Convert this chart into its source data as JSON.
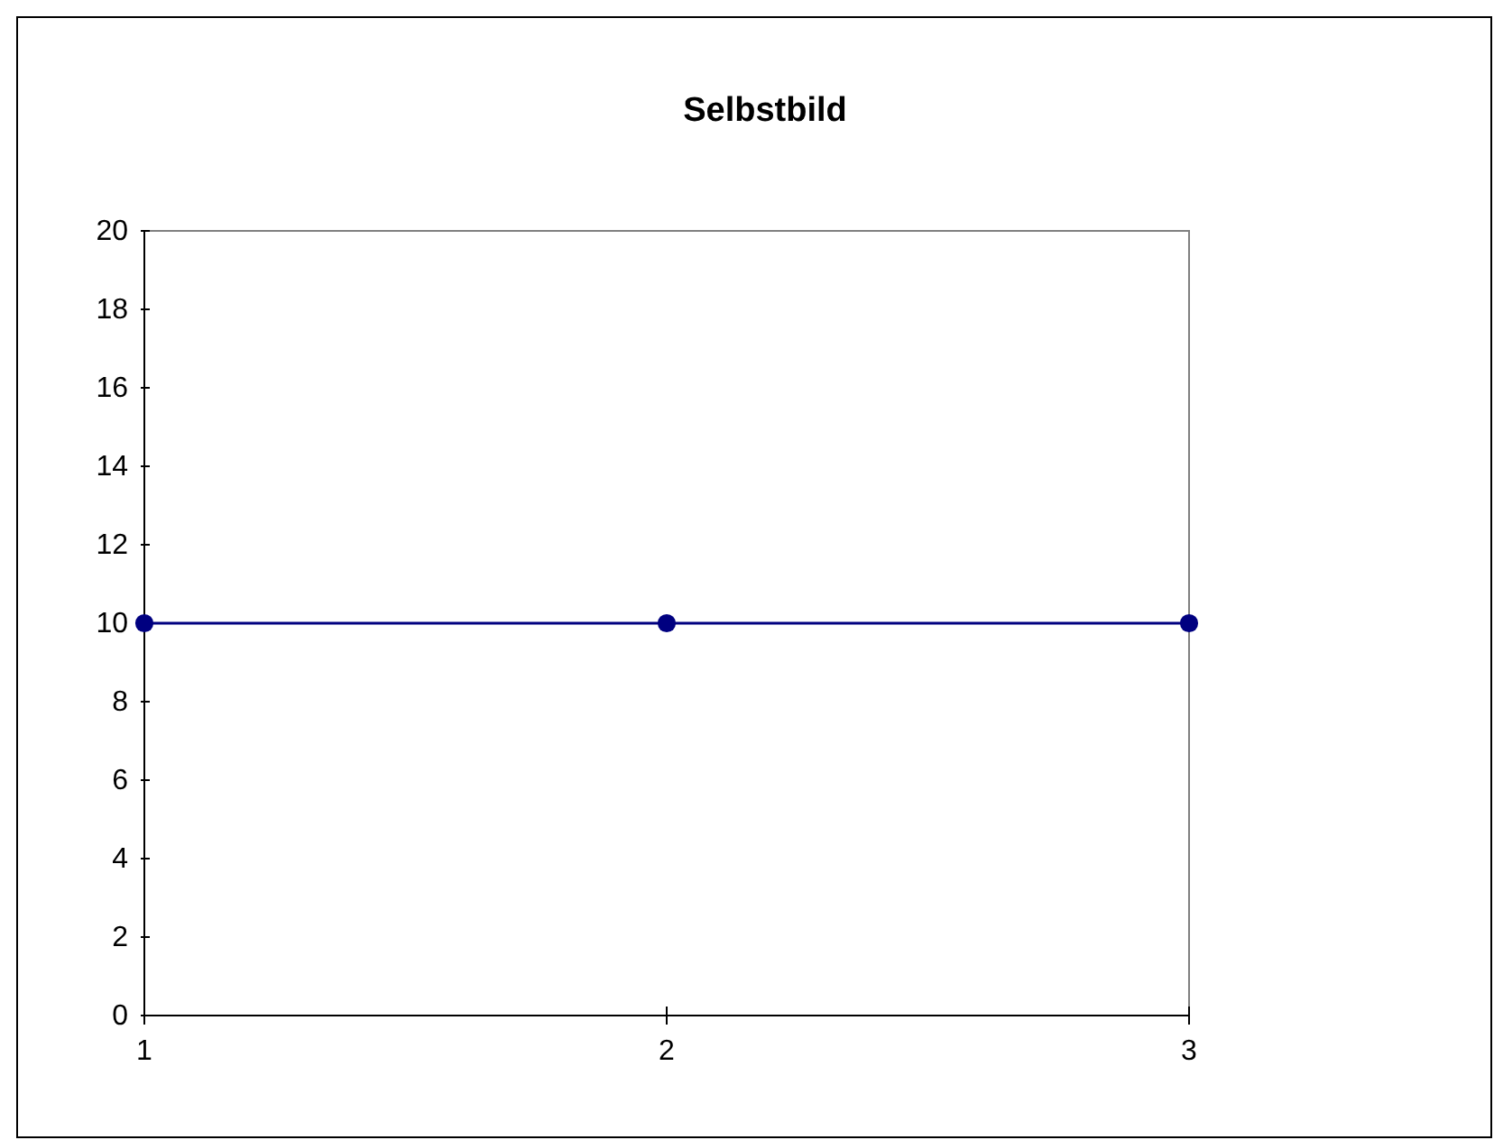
{
  "chart_data": {
    "type": "line",
    "title": "Selbstbild",
    "x": [
      1,
      2,
      3
    ],
    "series": [
      {
        "color": "#000080",
        "values": [
          10,
          10,
          10
        ]
      }
    ],
    "xlim": [
      1,
      3
    ],
    "xticks": [
      1,
      2,
      3
    ],
    "ylim": [
      0,
      20
    ],
    "yticks": [
      0,
      2,
      4,
      6,
      8,
      10,
      12,
      14,
      16,
      18,
      20
    ],
    "grid": false,
    "marker": "circle",
    "line_style": "solid"
  }
}
